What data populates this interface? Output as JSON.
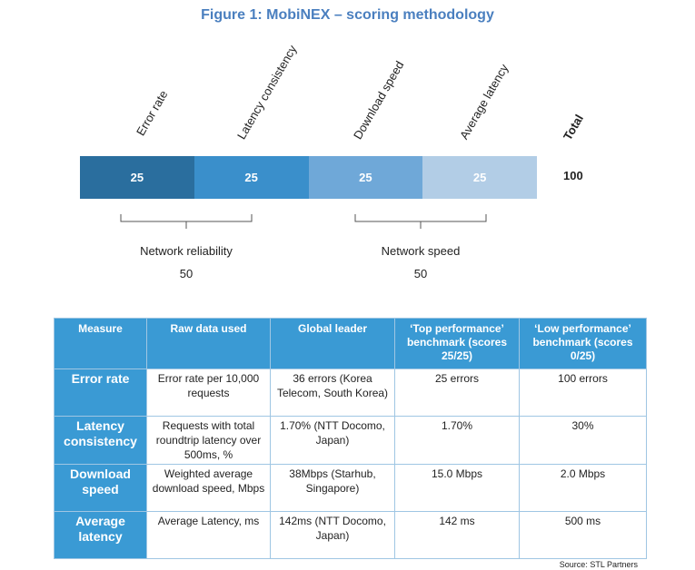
{
  "figure": {
    "title": "Figure 1: MobiNEX – scoring methodology"
  },
  "chart_data": {
    "type": "stacked_bar",
    "categories": [
      "Error rate",
      "Latency consistency",
      "Download speed",
      "Average latency"
    ],
    "values": [
      25,
      25,
      25,
      25
    ],
    "colors": [
      "#2a6e9e",
      "#3a8fcb",
      "#6fa8d8",
      "#b2cde6"
    ],
    "total_label": "Total",
    "total_value": "100",
    "groups": [
      {
        "name": "Network reliability",
        "value": "50",
        "members": [
          "Error rate",
          "Latency consistency"
        ]
      },
      {
        "name": "Network speed",
        "value": "50",
        "members": [
          "Download speed",
          "Average latency"
        ]
      }
    ]
  },
  "table": {
    "headers": [
      "Measure",
      "Raw data used",
      "Global leader",
      "‘Top performance’ benchmark (scores 25/25)",
      "‘Low performance’ benchmark (scores 0/25)"
    ],
    "rows": [
      {
        "measure": "Error rate",
        "raw": "Error rate per 10,000 requests",
        "leader": "36 errors (Korea Telecom, South Korea)",
        "top": "25 errors",
        "low": "100 errors"
      },
      {
        "measure": "Latency consistency",
        "raw": "Requests with total roundtrip latency over 500ms, %",
        "leader": "1.70% (NTT Docomo, Japan)",
        "top": "1.70%",
        "low": "30%"
      },
      {
        "measure": "Download speed",
        "raw": "Weighted average download speed, Mbps",
        "leader": "38Mbps (Starhub, Singapore)",
        "top": "15.0 Mbps",
        "low": "2.0 Mbps"
      },
      {
        "measure": "Average latency",
        "raw": "Average Latency, ms",
        "leader": "142ms (NTT Docomo, Japan)",
        "top": "142 ms",
        "low": "500 ms"
      }
    ]
  },
  "source": "Source: STL Partners"
}
